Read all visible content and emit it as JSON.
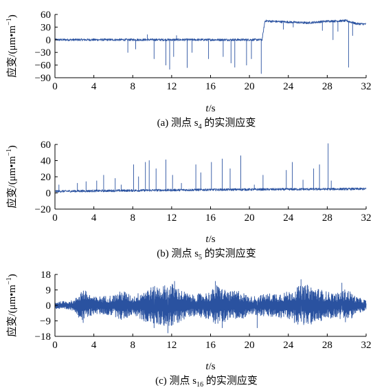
{
  "chart_data": [
    {
      "type": "line",
      "caption": {
        "prefix": "(a) 测点 s",
        "sub": "4",
        "suffix": " 的实测应变"
      },
      "ylabel": {
        "main": "应变/(μm•m",
        "sup": "−1",
        "close": ")"
      },
      "xlabel": {
        "var": "t",
        "unit": "/s"
      },
      "xlim": [
        0,
        32
      ],
      "ylim": [
        -90,
        60
      ],
      "xticks": [
        0,
        4,
        8,
        12,
        16,
        20,
        24,
        28,
        32
      ],
      "yticks": [
        60,
        30,
        0,
        -30,
        -60,
        -90
      ],
      "ytick_labels": [
        "60",
        "30",
        "0",
        "−30",
        "−60",
        "−90"
      ],
      "series": [
        {
          "color": "#2a52a0",
          "x": [
            0,
            21.3,
            21.6,
            22,
            24,
            26,
            28,
            30,
            31,
            32
          ],
          "y": [
            0,
            0,
            45,
            44,
            42,
            40,
            44,
            45,
            38,
            37
          ],
          "spikes": [
            {
              "x": 7.5,
              "y": -30
            },
            {
              "x": 8.3,
              "y": -22
            },
            {
              "x": 10.2,
              "y": -45
            },
            {
              "x": 11.4,
              "y": -60
            },
            {
              "x": 11.8,
              "y": -70
            },
            {
              "x": 12.2,
              "y": -40
            },
            {
              "x": 13.6,
              "y": -66
            },
            {
              "x": 14.1,
              "y": -30
            },
            {
              "x": 15.8,
              "y": -45
            },
            {
              "x": 17.3,
              "y": -40
            },
            {
              "x": 18.1,
              "y": -55
            },
            {
              "x": 18.5,
              "y": -65
            },
            {
              "x": 19.7,
              "y": -60
            },
            {
              "x": 20.2,
              "y": -45
            },
            {
              "x": 21.2,
              "y": -80
            },
            {
              "x": 23.5,
              "y": 25
            },
            {
              "x": 24.5,
              "y": 30
            },
            {
              "x": 27.5,
              "y": 22
            },
            {
              "x": 28.6,
              "y": 0
            },
            {
              "x": 29.1,
              "y": 20
            },
            {
              "x": 30.2,
              "y": -65
            },
            {
              "x": 30.6,
              "y": 10
            },
            {
              "x": 9.5,
              "y": 12
            },
            {
              "x": 12.5,
              "y": 10
            }
          ]
        }
      ]
    },
    {
      "type": "line",
      "caption": {
        "prefix": "(b) 测点 s",
        "sub": "5",
        "suffix": " 的实测应变"
      },
      "ylabel": {
        "main": "应变/(μm•m",
        "sup": "−1",
        "close": ")"
      },
      "xlabel": {
        "var": "t",
        "unit": "/s"
      },
      "xlim": [
        0,
        32
      ],
      "ylim": [
        -20,
        60
      ],
      "xticks": [
        0,
        4,
        8,
        12,
        16,
        20,
        24,
        28,
        32
      ],
      "yticks": [
        60,
        40,
        20,
        0,
        -20
      ],
      "ytick_labels": [
        "60",
        "40",
        "20",
        "0",
        "−20"
      ],
      "series": [
        {
          "color": "#2a52a0",
          "x": [
            0,
            8,
            16,
            24,
            32
          ],
          "y": [
            2,
            3,
            4,
            4.5,
            5
          ],
          "spikes": [
            {
              "x": 0.4,
              "y": 10
            },
            {
              "x": 2.3,
              "y": 12
            },
            {
              "x": 3.2,
              "y": 14
            },
            {
              "x": 4.3,
              "y": 15
            },
            {
              "x": 5.0,
              "y": 22
            },
            {
              "x": 6.2,
              "y": 18
            },
            {
              "x": 8.1,
              "y": 35
            },
            {
              "x": 8.6,
              "y": 20
            },
            {
              "x": 9.3,
              "y": 38
            },
            {
              "x": 9.7,
              "y": 40
            },
            {
              "x": 10.4,
              "y": 30
            },
            {
              "x": 11.4,
              "y": 41
            },
            {
              "x": 12.1,
              "y": 22
            },
            {
              "x": 14.5,
              "y": 35
            },
            {
              "x": 15.0,
              "y": 25
            },
            {
              "x": 16.1,
              "y": 38
            },
            {
              "x": 17.2,
              "y": 42
            },
            {
              "x": 18.0,
              "y": 30
            },
            {
              "x": 19.1,
              "y": 46
            },
            {
              "x": 21.4,
              "y": 22
            },
            {
              "x": 23.8,
              "y": 28
            },
            {
              "x": 24.4,
              "y": 38
            },
            {
              "x": 26.6,
              "y": 30
            },
            {
              "x": 27.2,
              "y": 35
            },
            {
              "x": 28.1,
              "y": 61
            },
            {
              "x": 28.4,
              "y": 15
            },
            {
              "x": 6.8,
              "y": 10
            },
            {
              "x": 13.0,
              "y": 12
            },
            {
              "x": 20.5,
              "y": 10
            },
            {
              "x": 25.5,
              "y": 16
            }
          ]
        }
      ]
    },
    {
      "type": "line",
      "caption": {
        "prefix": "(c) 测点 s",
        "sub": "16",
        "suffix": " 的实测应变"
      },
      "ylabel": {
        "main": "应变/(μm•m",
        "sup": "−1",
        "close": ")"
      },
      "xlabel": {
        "var": "t",
        "unit": "/s"
      },
      "xlim": [
        0,
        32
      ],
      "ylim": [
        -18,
        18
      ],
      "xticks": [
        0,
        4,
        8,
        12,
        16,
        20,
        24,
        28,
        32
      ],
      "yticks": [
        18,
        9,
        0,
        -9,
        -18
      ],
      "ytick_labels": [
        "18",
        "9",
        "0",
        "−9",
        "−18"
      ],
      "series": [
        {
          "color": "#2a52a0",
          "x": [
            0,
            2,
            2.8,
            4,
            6,
            7,
            8,
            9,
            10,
            11.5,
            12,
            13,
            14,
            16,
            16.6,
            18,
            19,
            20,
            22,
            24,
            24.9,
            26,
            27,
            28,
            29,
            30,
            31,
            32
          ],
          "y": [
            2,
            3,
            10,
            5,
            6,
            9,
            5,
            9,
            11,
            12,
            13,
            9,
            6,
            8,
            12,
            8,
            9,
            5,
            7,
            8,
            11,
            12,
            10,
            8,
            7,
            10,
            5,
            3
          ],
          "spikes": [
            {
              "x": 11.6,
              "y": -16
            },
            {
              "x": 12.3,
              "y": 14
            },
            {
              "x": 16.5,
              "y": 14
            },
            {
              "x": 25.3,
              "y": 15
            },
            {
              "x": 29.5,
              "y": 13
            },
            {
              "x": 10.2,
              "y": -13
            },
            {
              "x": 17.2,
              "y": -13
            },
            {
              "x": 20.8,
              "y": -13
            },
            {
              "x": 2.9,
              "y": -10
            }
          ]
        }
      ]
    }
  ]
}
